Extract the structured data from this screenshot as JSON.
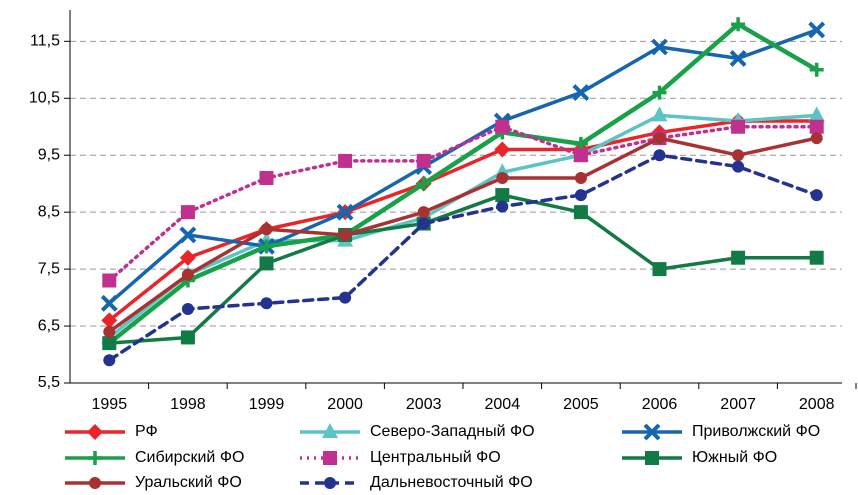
{
  "chart_data": {
    "type": "line",
    "categories": [
      "1995",
      "1998",
      "1999",
      "2000",
      "2003",
      "2004",
      "2005",
      "2006",
      "2007",
      "2008"
    ],
    "ylim": [
      5.5,
      12.05
    ],
    "yticks": [
      {
        "value": 5.5,
        "label": "5,5"
      },
      {
        "value": 6.5,
        "label": "6,5"
      },
      {
        "value": 7.5,
        "label": "7,5"
      },
      {
        "value": 8.5,
        "label": "8,5"
      },
      {
        "value": 9.5,
        "label": "9,5"
      },
      {
        "value": 10.5,
        "label": "10,5"
      },
      {
        "value": 11.5,
        "label": "11,5"
      }
    ],
    "grid": true,
    "series": [
      {
        "name": "РФ",
        "color": "#e8262a",
        "marker": "diamond",
        "dash": "solid",
        "values": [
          6.6,
          7.7,
          8.2,
          8.5,
          9.0,
          9.6,
          9.6,
          9.9,
          10.1,
          10.1
        ]
      },
      {
        "name": "Северо-Западный ФО",
        "color": "#5cc4c4",
        "marker": "triangle",
        "dash": "solid",
        "values": [
          6.3,
          7.4,
          8.0,
          8.0,
          8.4,
          9.2,
          9.5,
          10.2,
          10.1,
          10.2
        ]
      },
      {
        "name": "Приволжский ФО",
        "color": "#1565b0",
        "marker": "x",
        "dash": "solid",
        "values": [
          6.9,
          8.1,
          7.9,
          8.5,
          9.3,
          10.1,
          10.6,
          11.4,
          11.2,
          11.7
        ]
      },
      {
        "name": "Сибирский ФО",
        "color": "#19a14a",
        "marker": "plus",
        "dash": "solid",
        "values": [
          6.2,
          7.3,
          7.9,
          8.1,
          9.0,
          9.9,
          9.7,
          10.6,
          11.8,
          11.0
        ]
      },
      {
        "name": "Центральный ФО",
        "color": "#c2308f",
        "marker": "square",
        "dash": "dotted",
        "values": [
          7.3,
          8.5,
          9.1,
          9.4,
          9.4,
          10.0,
          9.5,
          9.8,
          10.0,
          10.0
        ]
      },
      {
        "name": "Южный ФО",
        "color": "#127a45",
        "marker": "square",
        "dash": "solid",
        "values": [
          6.2,
          6.3,
          7.6,
          8.1,
          8.3,
          8.8,
          8.5,
          7.5,
          7.7,
          7.7
        ]
      },
      {
        "name": "Уральский ФО",
        "color": "#a83232",
        "marker": "circle",
        "dash": "solid",
        "values": [
          6.4,
          7.4,
          8.2,
          8.1,
          8.5,
          9.1,
          9.1,
          9.8,
          9.5,
          9.8
        ]
      },
      {
        "name": "Дальневосточный ФО",
        "color": "#23338f",
        "marker": "circle",
        "dash": "dashed",
        "values": [
          5.9,
          6.8,
          6.9,
          7.0,
          8.3,
          8.6,
          8.8,
          9.5,
          9.3,
          8.8
        ]
      }
    ]
  }
}
